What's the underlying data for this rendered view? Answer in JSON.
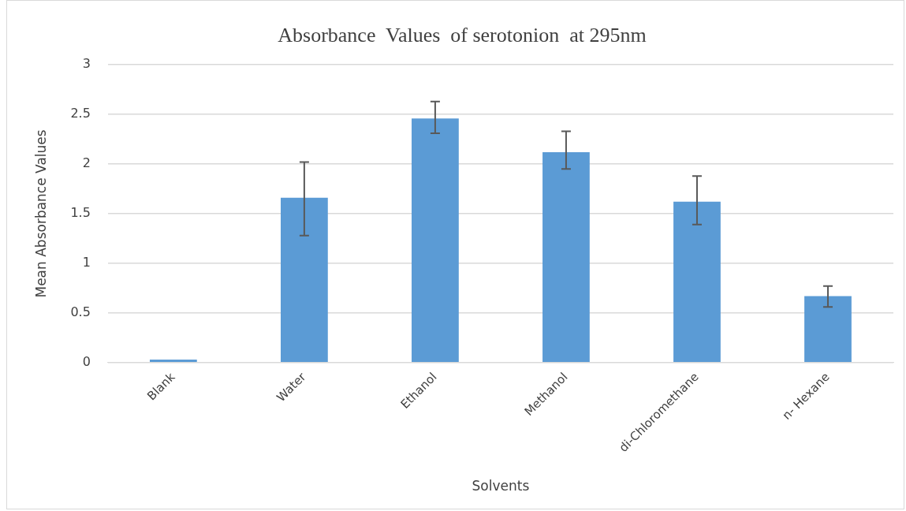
{
  "chart_data": {
    "type": "bar",
    "title": "Absorbance  Values  of serotonion  at 295nm",
    "xlabel": "Solvents",
    "ylabel": "Mean Absorbance Values",
    "categories": [
      "Blank",
      "Water",
      "Ethanol",
      "Methanol",
      "di-Chloromethane",
      "n- Hexane"
    ],
    "values": [
      0.03,
      1.66,
      2.46,
      2.12,
      1.62,
      0.67
    ],
    "errors": [
      null,
      [
        1.28,
        2.02
      ],
      [
        2.31,
        2.63
      ],
      [
        1.95,
        2.33
      ],
      [
        1.39,
        1.88
      ],
      [
        0.56,
        0.77
      ]
    ],
    "color": "#5b9bd5",
    "ylim": [
      0,
      3
    ],
    "yticks": [
      0,
      0.5,
      1,
      1.5,
      2,
      2.5,
      3
    ],
    "grid": "y",
    "legend": false
  }
}
